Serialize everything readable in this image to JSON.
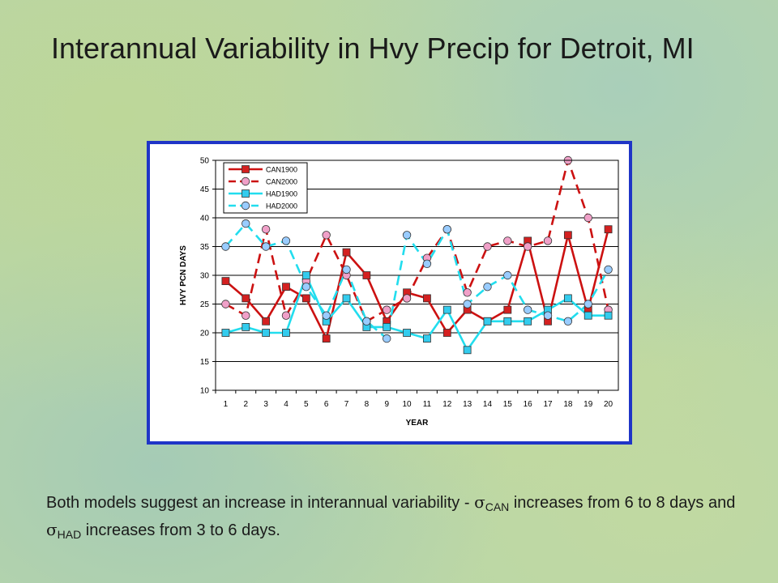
{
  "slide": {
    "title": "Interannual Variability in Hvy Precip for Detroit, MI",
    "caption": {
      "part1": "Both models suggest an increase in interannual variability - ",
      "sigma1": "σ",
      "sub1": "CAN",
      "part2": " increases from 6 to 8 days and ",
      "sigma2": "σ",
      "sub2": "HAD",
      "part3": " increases from 3 to 6 days."
    }
  },
  "colors": {
    "frame": "#1f35c7",
    "can_line": "#cc1111",
    "can1900_fill": "#d42020",
    "can2000_fill": "#f0a0c8",
    "had_line": "#22ddee",
    "had1900_fill": "#33ccee",
    "had2000_fill": "#99ccff"
  },
  "chart_data": {
    "type": "line",
    "xlabel": "YEAR",
    "ylabel": "HVY PCN DAYS",
    "ylim": [
      10,
      50
    ],
    "yticks": [
      10,
      15,
      20,
      25,
      30,
      35,
      40,
      45,
      50
    ],
    "grid": true,
    "legend_position": "top-left",
    "x": [
      1,
      2,
      3,
      4,
      5,
      6,
      7,
      8,
      9,
      10,
      11,
      12,
      13,
      14,
      15,
      16,
      17,
      18,
      19,
      20
    ],
    "series": [
      {
        "name": "CAN1900",
        "color": "#cc1111",
        "marker": "square",
        "dash": "solid",
        "values": [
          29,
          26,
          22,
          28,
          26,
          19,
          34,
          30,
          22,
          27,
          26,
          20,
          24,
          22,
          24,
          36,
          22,
          37,
          24,
          38
        ]
      },
      {
        "name": "CAN2000",
        "color": "#cc1111",
        "marker": "circle",
        "dash": "dashed",
        "values": [
          25,
          23,
          38,
          23,
          29,
          37,
          30,
          22,
          24,
          26,
          33,
          38,
          27,
          35,
          36,
          35,
          36,
          50,
          40,
          24
        ]
      },
      {
        "name": "HAD1900",
        "color": "#22ddee",
        "marker": "square",
        "dash": "solid",
        "values": [
          20,
          21,
          20,
          20,
          30,
          22,
          26,
          21,
          21,
          20,
          19,
          24,
          17,
          22,
          22,
          22,
          24,
          26,
          23,
          23
        ]
      },
      {
        "name": "HAD2000",
        "color": "#22ddee",
        "marker": "circle",
        "dash": "dashed",
        "values": [
          35,
          39,
          35,
          36,
          28,
          23,
          31,
          22,
          19,
          37,
          32,
          38,
          25,
          28,
          30,
          24,
          23,
          22,
          25,
          31
        ]
      }
    ]
  }
}
